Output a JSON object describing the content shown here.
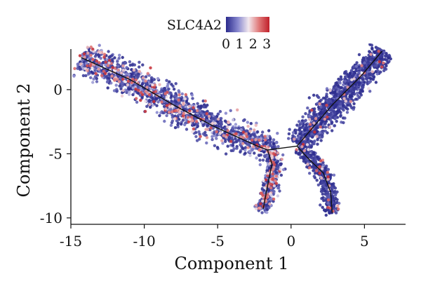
{
  "chart_data": {
    "type": "scatter",
    "title": "",
    "xlabel": "Component 1",
    "ylabel": "Component 2",
    "xlim": [
      -15,
      7.8
    ],
    "ylim": [
      -10.5,
      3.6
    ],
    "xticks": [
      "-15",
      "-10",
      "-5",
      "0",
      "5"
    ],
    "yticks": [
      "0",
      "-5",
      "-10"
    ],
    "xtick_values": [
      -15,
      -10,
      -5,
      0,
      5
    ],
    "ytick_values": [
      0,
      -5,
      -10
    ],
    "grid": false,
    "legend": {
      "title": "SLC4A2",
      "placement": "top-center",
      "ticks": [
        "0",
        "1",
        "2",
        "3"
      ],
      "tick_values": [
        0,
        1,
        2,
        3
      ],
      "range": [
        0,
        3.2
      ],
      "colors": [
        "#2a2a8c",
        "#8a8ad0",
        "#f2e8ee",
        "#e07878",
        "#c0202a"
      ]
    },
    "point_color_low": "#2a2a8c",
    "point_color_high": "#c0202a",
    "trajectory": {
      "color": "#111111",
      "segments": [
        [
          [
            -14.3,
            2.5
          ],
          [
            -11,
            0.8
          ],
          [
            -8,
            -1.2
          ],
          [
            -5.2,
            -2.9
          ],
          [
            -2.3,
            -4.4
          ],
          [
            -1.6,
            -4.7
          ],
          [
            0.4,
            -4.4
          ]
        ],
        [
          [
            0.4,
            -4.4
          ],
          [
            2.8,
            -1.2
          ],
          [
            4.8,
            1.1
          ],
          [
            6.2,
            3.0
          ]
        ],
        [
          [
            -1.6,
            -4.7
          ],
          [
            -1.3,
            -5.8
          ],
          [
            -1.6,
            -7.5
          ],
          [
            -1.9,
            -9.3
          ]
        ],
        [
          [
            0.4,
            -4.4
          ],
          [
            1.2,
            -5.4
          ],
          [
            2.2,
            -6.5
          ],
          [
            2.7,
            -8.0
          ],
          [
            2.8,
            -9.6
          ]
        ]
      ]
    },
    "branches": [
      {
        "path": [
          [
            -14.3,
            2.6
          ],
          [
            -12,
            1.4
          ],
          [
            -9,
            -0.5
          ],
          [
            -6.5,
            -2.1
          ],
          [
            -4,
            -3.5
          ],
          [
            -2.2,
            -4.4
          ],
          [
            -1.0,
            -4.6
          ]
        ],
        "width": 1.3,
        "count": 1400,
        "expr_mean": 0.9,
        "high_fraction": 0.14
      },
      {
        "path": [
          [
            0.5,
            -4.3
          ],
          [
            1.6,
            -2.8
          ],
          [
            3.0,
            -1.0
          ],
          [
            4.3,
            0.6
          ],
          [
            5.4,
            1.9
          ],
          [
            6.3,
            3.0
          ]
        ],
        "width": 1.1,
        "count": 1100,
        "expr_mean": 0.45,
        "high_fraction": 0.03
      },
      {
        "path": [
          [
            -1.3,
            -4.9
          ],
          [
            -1.1,
            -6.0
          ],
          [
            -1.4,
            -7.5
          ],
          [
            -1.7,
            -8.6
          ],
          [
            -2.0,
            -9.4
          ]
        ],
        "width": 0.55,
        "count": 420,
        "expr_mean": 0.95,
        "high_fraction": 0.18
      },
      {
        "path": [
          [
            0.6,
            -4.5
          ],
          [
            1.5,
            -5.5
          ],
          [
            2.2,
            -6.6
          ],
          [
            2.6,
            -7.8
          ],
          [
            2.8,
            -9.6
          ]
        ],
        "width": 0.6,
        "count": 380,
        "expr_mean": 0.4,
        "high_fraction": 0.04
      }
    ]
  }
}
